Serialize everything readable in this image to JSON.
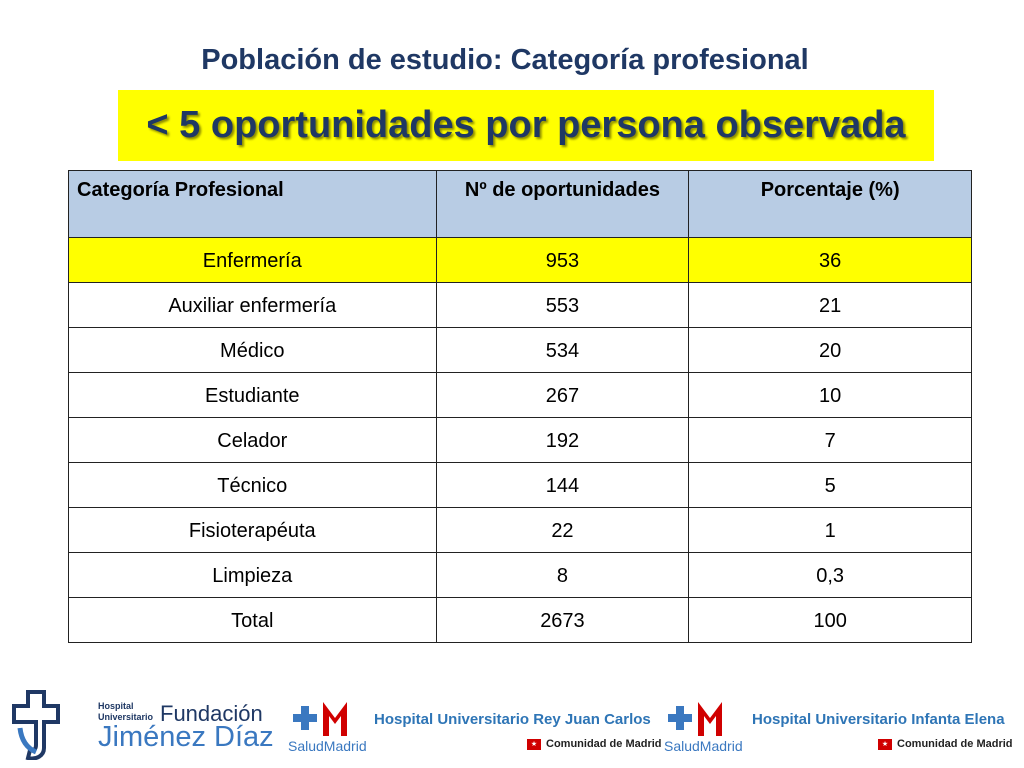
{
  "title": "Población de estudio: Categoría profesional",
  "subtitle": "< 5 oportunidades por persona observada",
  "table": {
    "headers": [
      "Categoría Profesional",
      "Nº de oportunidades",
      "Porcentaje (%)"
    ],
    "rows": [
      [
        "Enfermería",
        "953",
        "36"
      ],
      [
        "Auxiliar enfermería",
        "553",
        "21"
      ],
      [
        "Médico",
        "534",
        "20"
      ],
      [
        "Estudiante",
        "267",
        "10"
      ],
      [
        "Celador",
        "192",
        "7"
      ],
      [
        "Técnico",
        "144",
        "5"
      ],
      [
        "Fisioterapéuta",
        "22",
        "1"
      ],
      [
        "Limpieza",
        "8",
        "0,3"
      ],
      [
        "Total",
        "2673",
        "100"
      ]
    ],
    "highlight_row": 0,
    "highlight_color": "#ffff00",
    "header_color": "#b8cce4"
  },
  "footer": {
    "fjd": {
      "hospital": "Hospital",
      "universitario": "Universitario",
      "fundacion": "Fundación",
      "name": "Jiménez Díaz"
    },
    "logo1": {
      "label": "SaludMadrid",
      "hospital": "Hospital Universitario Rey Juan Carlos",
      "comunidad": "Comunidad de Madrid"
    },
    "logo2": {
      "label": "SaludMadrid",
      "hospital": "Hospital Universitario Infanta Elena",
      "comunidad": "Comunidad de Madrid"
    },
    "colors": {
      "navy": "#1f3864",
      "blue": "#3a78c0",
      "red": "#d00000"
    }
  }
}
